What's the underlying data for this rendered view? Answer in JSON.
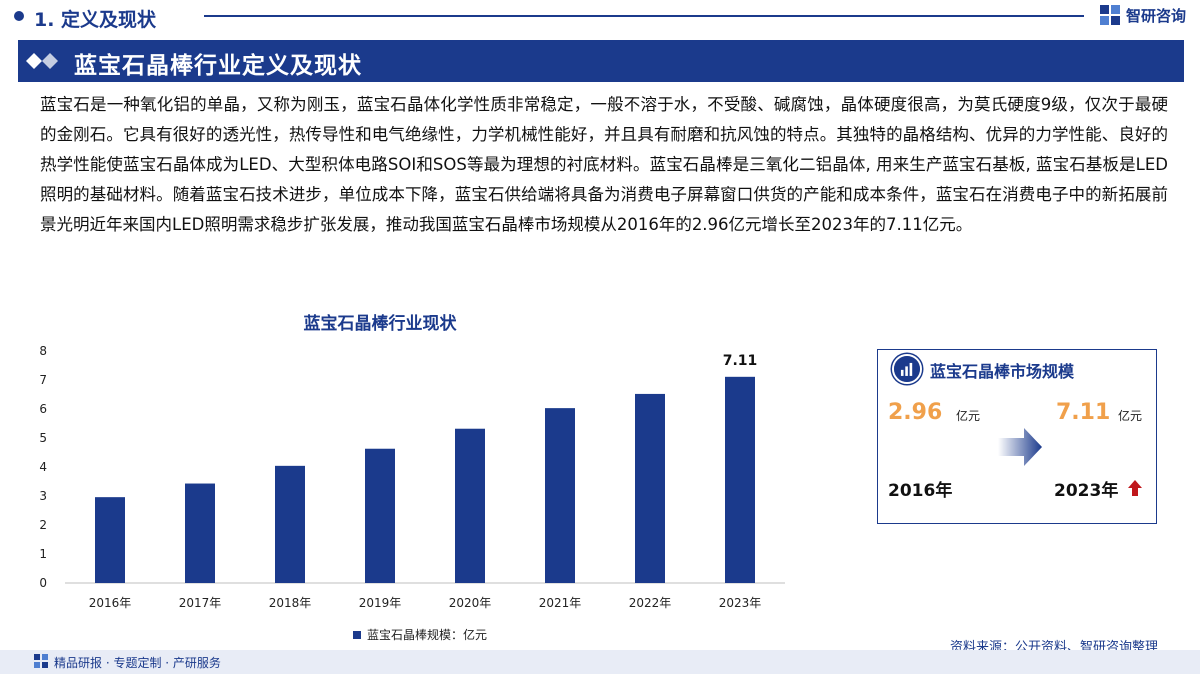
{
  "header": {
    "section_title": "1. 定义及现状",
    "brand_name": "智研咨询"
  },
  "banner": {
    "title": "蓝宝石晶棒行业定义及现状"
  },
  "paragraph": "蓝宝石是一种氧化铝的单晶，又称为刚玉，蓝宝石晶体化学性质非常稳定，一般不溶于水，不受酸、碱腐蚀，晶体硬度很高，为莫氏硬度9级，仅次于最硬的金刚石。它具有很好的透光性，热传导性和电气绝缘性，力学机械性能好，并且具有耐磨和抗风蚀的特点。其独特的晶格结构、优异的力学性能、良好的热学性能使蓝宝石晶体成为LED、大型积体电路SOI和SOS等最为理想的衬底材料。蓝宝石晶棒是三氧化二铝晶体, 用来生产蓝宝石基板, 蓝宝石基板是LED照明的基础材料。随着蓝宝石技术进步，单位成本下降，蓝宝石供给端将具备为消费电子屏幕窗口供货的产能和成本条件，蓝宝石在消费电子中的新拓展前景光明近年来国内LED照明需求稳步扩张发展，推动我国蓝宝石晶棒市场规模从2016年的2.96亿元增长至2023年的7.11亿元。",
  "chart_data": {
    "type": "bar",
    "title": "蓝宝石晶棒行业现状",
    "categories": [
      "2016年",
      "2017年",
      "2018年",
      "2019年",
      "2020年",
      "2021年",
      "2022年",
      "2023年"
    ],
    "series": [
      {
        "name": "蓝宝石晶棒规模：亿元",
        "values": [
          2.96,
          3.43,
          4.04,
          4.63,
          5.32,
          6.03,
          6.52,
          7.11
        ]
      }
    ],
    "data_labels": [
      null,
      null,
      null,
      null,
      null,
      null,
      null,
      "7.11"
    ],
    "ylim": [
      0,
      8
    ],
    "yticks": [
      "0",
      "1",
      "2",
      "3",
      "4",
      "5",
      "6",
      "7",
      "8"
    ],
    "xlabel": "",
    "ylabel": "",
    "grid": false,
    "legend": "bottom-center",
    "bar_color": "#1b3a8c"
  },
  "card": {
    "title": "蓝宝石晶棒市场规模",
    "start_value": "2.96",
    "start_unit": "亿元",
    "end_value": "7.11",
    "end_unit": "亿元",
    "start_year": "2016年",
    "end_year": "2023年",
    "value_color": "#f0a04b",
    "up_arrow_color": "#c0171c"
  },
  "footer": {
    "source": "资料来源：公开资料、智研咨询整理",
    "slogan": "精品研报 · 专题定制 · 产研服务"
  },
  "colors": {
    "primary": "#1b3a8c",
    "footer_bg": "#e8ecf6"
  }
}
